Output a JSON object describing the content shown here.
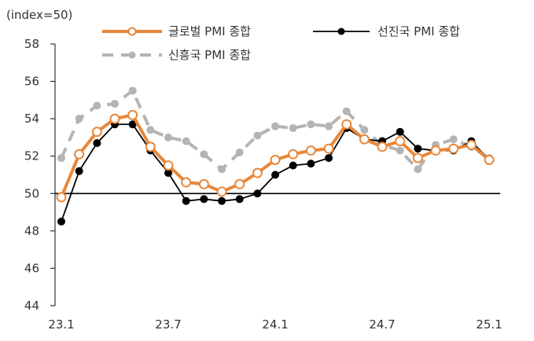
{
  "chart_data": {
    "type": "line",
    "unit_label": "(index=50)",
    "y_range": [
      44,
      58
    ],
    "y_ticks": [
      "44",
      "46",
      "48",
      "50",
      "52",
      "54",
      "56",
      "58"
    ],
    "x_tick_labels": [
      "23.1",
      "23.7",
      "24.1",
      "24.7",
      "25.1"
    ],
    "x": [
      "23.1",
      "23.2",
      "23.3",
      "23.4",
      "23.5",
      "23.6",
      "23.7",
      "23.8",
      "23.9",
      "23.10",
      "23.11",
      "23.12",
      "24.1",
      "24.2",
      "24.3",
      "24.4",
      "24.5",
      "24.6",
      "24.7",
      "24.8",
      "24.9",
      "24.10",
      "24.11",
      "24.12",
      "25.1"
    ],
    "reference_line": 50,
    "grid": false,
    "legend_position": "top",
    "series": [
      {
        "name": "글로벌 PMI 종합",
        "color": "#e8873a",
        "style": "solid-hollow-markers",
        "values": [
          49.8,
          52.1,
          53.3,
          54.0,
          54.2,
          52.5,
          51.5,
          50.6,
          50.5,
          50.1,
          50.5,
          51.1,
          51.8,
          52.1,
          52.3,
          52.4,
          53.7,
          52.9,
          52.5,
          52.8,
          51.9,
          52.3,
          52.4,
          52.6,
          51.8
        ]
      },
      {
        "name": "선진국 PMI 종합",
        "color": "#000000",
        "style": "solid-filled-markers",
        "values": [
          48.5,
          51.2,
          52.7,
          53.7,
          53.7,
          52.3,
          51.1,
          49.6,
          49.7,
          49.6,
          49.7,
          50.0,
          51.0,
          51.5,
          51.6,
          51.9,
          53.5,
          52.9,
          52.8,
          53.3,
          52.4,
          52.3,
          52.3,
          52.8,
          51.8
        ]
      },
      {
        "name": "신흥국 PMI 종합",
        "color": "#b4b4b4",
        "style": "dashed-filled-markers",
        "values": [
          51.9,
          54.0,
          54.7,
          54.8,
          55.5,
          53.4,
          53.0,
          52.8,
          52.1,
          51.3,
          52.2,
          53.1,
          53.6,
          53.5,
          53.7,
          53.6,
          54.4,
          53.4,
          52.6,
          52.3,
          51.3,
          52.6,
          52.9,
          52.5,
          51.9
        ]
      }
    ]
  }
}
